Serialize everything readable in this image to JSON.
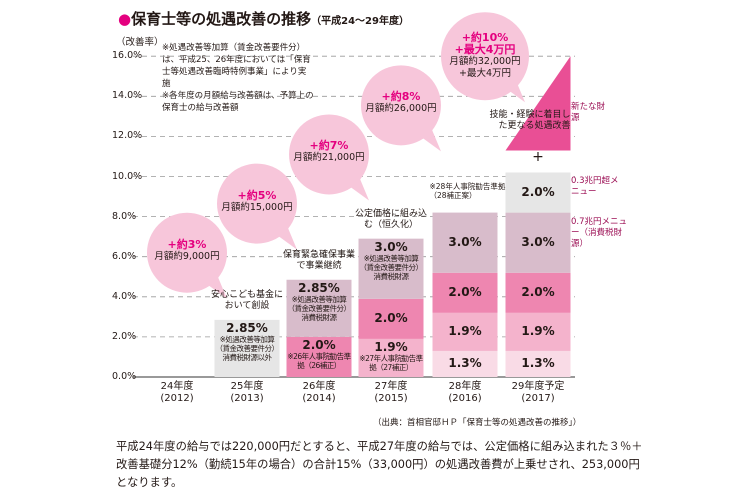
{
  "title": {
    "main": "保育士等の処遇改善の推移",
    "sub": "（平成24～29年度）"
  },
  "notes": [
    "※処遇改善等加算（賃金改善要件分）は、平成25、26年度においては「保育士等処遇改善臨時特例事業」により実施",
    "※各年度の月額給与改善額は、予算上の保育士の給与改善額"
  ],
  "chart_data": {
    "type": "bar",
    "stacked": true,
    "ylabel": "（改善率）",
    "ylim": [
      0,
      16
    ],
    "yticks": [
      "0.0%",
      "2.0%",
      "4.0%",
      "6.0%",
      "8.0%",
      "10.0%",
      "12.0%",
      "14.0%",
      "16.0%"
    ],
    "grid": true,
    "categories": [
      {
        "year": "24年度",
        "ad": "(2012)",
        "caption": "",
        "bubble": {
          "pct": "+約3%",
          "amount": "月額約9,000円"
        },
        "segments": []
      },
      {
        "year": "25年度",
        "ad": "(2013)",
        "caption": "安心こども基金において創設",
        "bubble": {
          "pct": "+約5%",
          "amount": "月額約15,000円"
        },
        "segments": [
          {
            "value": 2.85,
            "label": "2.85%",
            "note": "※処遇改善等加算（賃金改善要件分）消費税財源以外",
            "color": "#e6e6e6"
          }
        ]
      },
      {
        "year": "26年度",
        "ad": "(2014)",
        "caption": "保育緊急確保事業で事業継続",
        "bubble": {
          "pct": "+約7%",
          "amount": "月額約21,000円"
        },
        "segments": [
          {
            "value": 2.0,
            "label": "2.0%",
            "note": "※26年人事院勧告準拠（26補正）",
            "color": "#ee86b0"
          },
          {
            "value": 2.85,
            "label": "2.85%",
            "note": "※処遇改善等加算（賃金改善要件分）消費税財源",
            "color": "#d8bccb"
          }
        ]
      },
      {
        "year": "27年度",
        "ad": "(2015)",
        "caption": "公定価格に組み込む（恒久化）",
        "bubble": {
          "pct": "+約8%",
          "amount": "月額約26,000円"
        },
        "segments": [
          {
            "value": 1.9,
            "label": "1.9%",
            "note": "※27年人事院勧告準拠（27補正）",
            "color": "#f4b3cc"
          },
          {
            "value": 2.0,
            "label": "2.0%",
            "note": "",
            "color": "#ee86b0"
          },
          {
            "value": 3.0,
            "label": "3.0%",
            "note": "※処遇改善等加算（賃金改善要件分）消費税財源",
            "color": "#d8bccb"
          }
        ]
      },
      {
        "year": "28年度",
        "ad": "(2016)",
        "caption": "※28年人事院勧告準拠（28補正案）",
        "bubble": {
          "pct": "+約10%\n+最大4万円",
          "amount": "月額約32,000円\n+最大4万円"
        },
        "segments": [
          {
            "value": 1.3,
            "label": "1.3%",
            "note": "",
            "color": "#f9dbe6"
          },
          {
            "value": 1.9,
            "label": "1.9%",
            "note": "",
            "color": "#f4b3cc"
          },
          {
            "value": 2.0,
            "label": "2.0%",
            "note": "",
            "color": "#ee86b0"
          },
          {
            "value": 3.0,
            "label": "3.0%",
            "note": "",
            "color": "#d8bccb"
          }
        ]
      },
      {
        "year": "29年度予定",
        "ad": "(2017)",
        "caption": "技能・経験に着目した更なる処遇改善",
        "bubble": null,
        "segments": [
          {
            "value": 1.3,
            "label": "1.3%",
            "note": "",
            "color": "#f9dbe6"
          },
          {
            "value": 1.9,
            "label": "1.9%",
            "note": "",
            "color": "#f4b3cc"
          },
          {
            "value": 2.0,
            "label": "2.0%",
            "note": "",
            "color": "#ee86b0"
          },
          {
            "value": 3.0,
            "label": "3.0%",
            "note": "",
            "color": "#d8bccb"
          },
          {
            "value": 2.0,
            "label": "2.0%",
            "note": "",
            "color": "#e6e6e6"
          }
        ],
        "extra": {
          "top": 16,
          "color": "#e94f95",
          "plus": "+"
        }
      }
    ],
    "side_labels": {
      "new": "新たな財源",
      "menu03": "0.3兆円超メニュー",
      "menu07": "0.7兆円メニュー（消費税財源）"
    }
  },
  "source": "（出典：首相官邸ＨＰ「保育士等の処遇改善の推移」）",
  "body_text": "平成24年度の給与では220,000円だとすると、平成27年度の給与では、公定価格に組み込まれた３％＋改善基礎分12%（勤続15年の場合）の合計15%（33,000円）の処遇改善費が上乗せされ、253,000円となります。",
  "colors": {
    "accent": "#e4007f",
    "bubble": "#f7c6da"
  }
}
